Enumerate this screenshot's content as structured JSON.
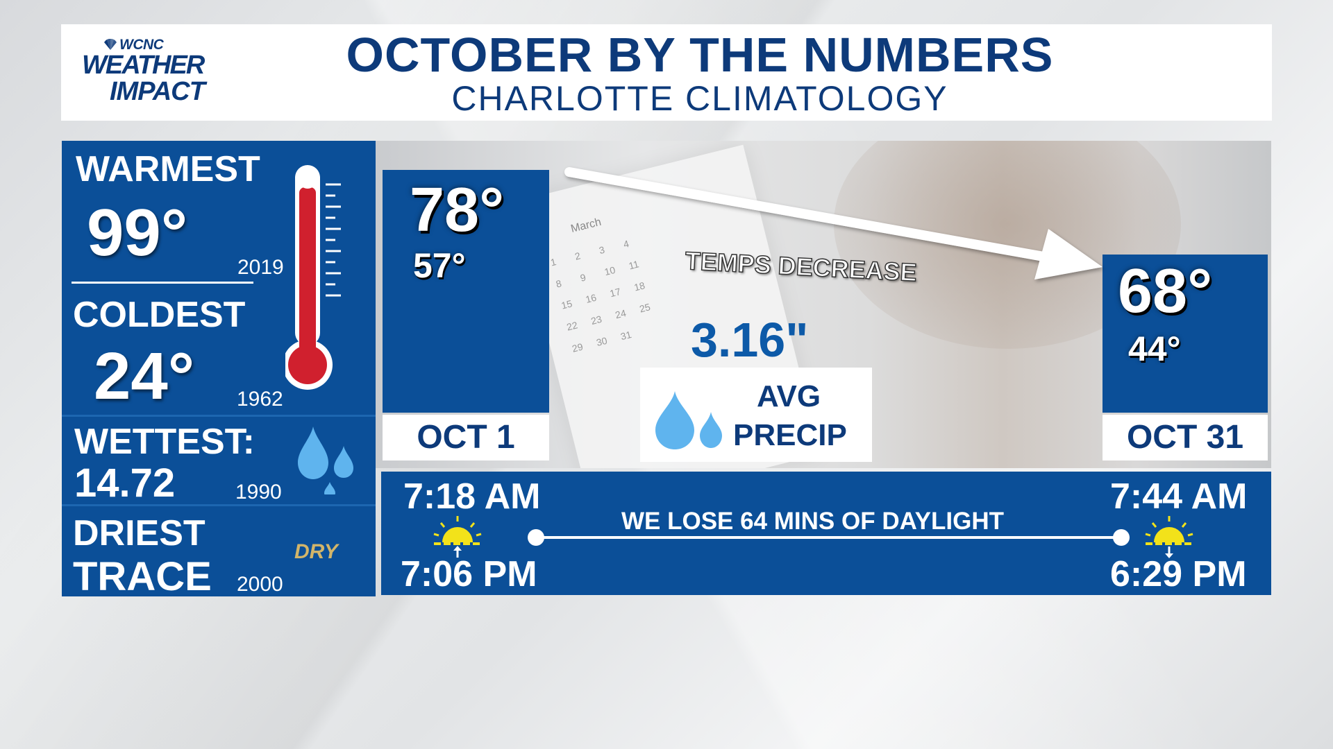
{
  "header": {
    "logo_station": "WCNC",
    "logo_line1": "WEATHER",
    "logo_line2": "IMPACT",
    "title": "OCTOBER BY THE NUMBERS",
    "subtitle": "CHARLOTTE CLIMATOLOGY"
  },
  "records": {
    "warmest_label": "WARMEST",
    "warmest_value": "99°",
    "warmest_year": "2019",
    "coldest_label": "COLDEST",
    "coldest_value": "24°",
    "coldest_year": "1962",
    "wettest_label": "WETTEST:",
    "wettest_value": "14.72",
    "wettest_year": "1990",
    "driest_label": "DRIEST",
    "driest_value": "TRACE",
    "driest_year": "2000",
    "dry_badge": "DRY"
  },
  "start_day": {
    "high": "78°",
    "low": "57°",
    "date": "OCT 1",
    "sunrise": "7:18 AM",
    "sunset": "7:06 PM"
  },
  "end_day": {
    "high": "68°",
    "low": "44°",
    "date": "OCT 31",
    "sunrise": "7:44 AM",
    "sunset": "6:29 PM"
  },
  "trend_label": "TEMPS DECREASE",
  "precip": {
    "value": "3.16\"",
    "label_line1": "AVG",
    "label_line2": "PRECIP"
  },
  "daylight_text": "WE LOSE 64 MINS OF DAYLIGHT",
  "background_calendar": {
    "month": "March",
    "days": [
      "1",
      "2",
      "3",
      "4",
      "",
      "",
      "",
      "8",
      "9",
      "10",
      "11",
      "",
      "",
      "",
      "15",
      "16",
      "17",
      "18",
      "",
      "",
      "",
      "22",
      "23",
      "24",
      "25",
      "",
      "",
      "",
      "29",
      "30",
      "31"
    ]
  },
  "colors": {
    "panel_blue": "#0b4f98",
    "title_navy": "#0d3a7a",
    "thermometer_red": "#d0202e",
    "drop_blue": "#5fb4ee",
    "sun_yellow": "#f2e21a"
  },
  "icons": [
    "thermometer-icon",
    "raindrops-icon",
    "sunrise-icon",
    "sunset-icon",
    "arrow-icon"
  ]
}
